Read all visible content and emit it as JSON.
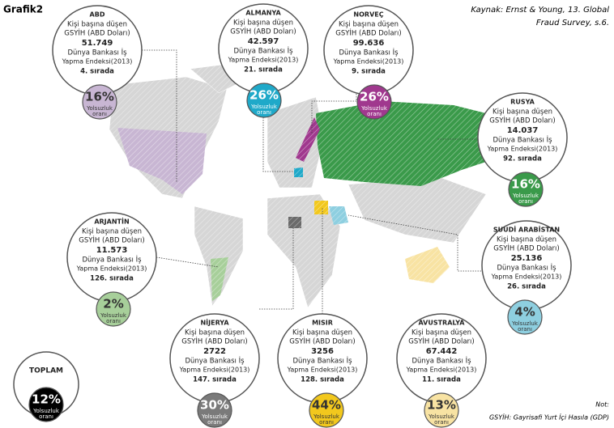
{
  "header": {
    "title": "Grafik2",
    "source": [
      "Kaynak: Ernst & Young, 13. Global",
      "Fraud Survey, s.6."
    ]
  },
  "labels": {
    "gdp_line1": "Kişi başına düşen",
    "gdp_line2": "GSYİH (ABD Doları)",
    "index_line1": "Dünya Bankası İş",
    "index_line2": "Yapma Endeksi(2013)",
    "rate_line1": "Yolsuzluk",
    "rate_line2": "oranı"
  },
  "countries": [
    {
      "name": "ABD",
      "gdp": "51.749",
      "rank": "4. sırada",
      "rate": "16%"
    },
    {
      "name": "ALMANYA",
      "gdp": "42.597",
      "rank": "21. sırada",
      "rate": "26%"
    },
    {
      "name": "NORVEÇ",
      "gdp": "99.636",
      "rank": "9. sırada",
      "rate": "26%"
    },
    {
      "name": "RUSYA",
      "gdp": "14.037",
      "rank": "92. sırada",
      "rate": "16%"
    },
    {
      "name": "SUUDİ ARABİSTAN",
      "gdp": "25.136",
      "rank": "26. sırada",
      "rate": "4%"
    },
    {
      "name": "ARJANTİN",
      "gdp": "11.573",
      "rank": "126. sırada",
      "rate": "2%"
    },
    {
      "name": "NİJERYA",
      "gdp": "2722",
      "rank": "147. sırada",
      "rate": "30%"
    },
    {
      "name": "MISIR",
      "gdp": "3256",
      "rank": "128. sırada",
      "rate": "44%"
    },
    {
      "name": "AVUSTRALYA",
      "gdp": "67.442",
      "rank": "11. sırada",
      "rate": "13%"
    }
  ],
  "total": {
    "name": "TOPLAM",
    "rate": "12%"
  },
  "note": {
    "title": "Not:",
    "text": "GSYİH: Gayrisafi Yurt İçi Hasıla (GDP)"
  }
}
